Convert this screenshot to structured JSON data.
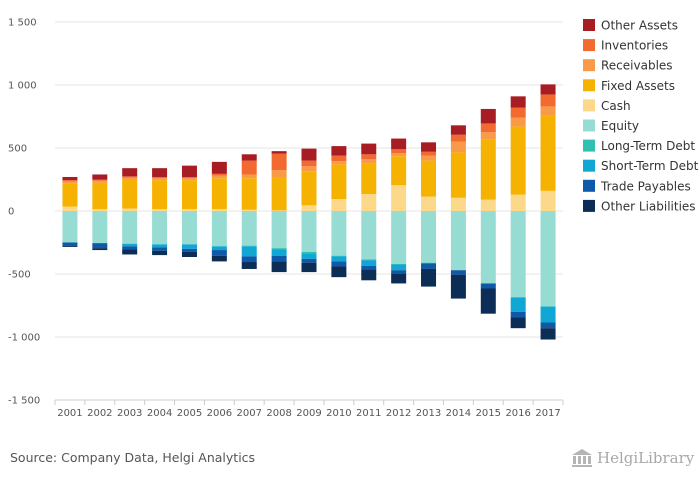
{
  "source": "Source: Company Data, Helgi Analytics",
  "brand": "HelgiLibrary",
  "colors": {
    "other_assets": "#a71d23",
    "inventories": "#f26a2f",
    "receivables": "#f89a48",
    "fixed_assets": "#f6b200",
    "cash": "#fcd88a",
    "equity": "#96dcd2",
    "long_term_debt": "#2ec0b0",
    "short_term_debt": "#10a7d4",
    "trade_payables": "#0f5aa8",
    "other_liabilities": "#0c2d55",
    "grid": "#e6e6e6",
    "axis": "#cccccc",
    "text": "#555555"
  },
  "chart_data": {
    "type": "bar",
    "stacked": true,
    "title": "",
    "xlabel": "",
    "ylabel": "",
    "ylim": [
      -1500,
      1500
    ],
    "yticks": [
      1500,
      1000,
      500,
      0,
      -500,
      -1000,
      -1500
    ],
    "ytick_labels": [
      "1 500",
      "1 000",
      "500",
      "0",
      "-500",
      "-1 000",
      "-1 500"
    ],
    "grid": true,
    "legend_position": "right",
    "categories": [
      "2001",
      "2002",
      "2003",
      "2004",
      "2005",
      "2006",
      "2007",
      "2008",
      "2009",
      "2010",
      "2011",
      "2012",
      "2013",
      "2014",
      "2015",
      "2016",
      "2017"
    ],
    "positive_series": [
      {
        "key": "cash",
        "name": "Cash",
        "values": [
          35,
          15,
          20,
          15,
          15,
          15,
          10,
          5,
          45,
          95,
          135,
          205,
          115,
          105,
          90,
          130,
          160
        ]
      },
      {
        "key": "fixed_assets",
        "name": "Fixed Assets",
        "values": [
          185,
          210,
          230,
          230,
          230,
          245,
          250,
          265,
          270,
          275,
          245,
          230,
          285,
          360,
          475,
          540,
          595
        ]
      },
      {
        "key": "receivables",
        "name": "Receivables",
        "values": [
          15,
          15,
          15,
          15,
          15,
          20,
          30,
          55,
          40,
          25,
          30,
          25,
          40,
          85,
          60,
          70,
          75
        ]
      },
      {
        "key": "inventories",
        "name": "Inventories",
        "values": [
          10,
          10,
          10,
          10,
          10,
          15,
          110,
          130,
          45,
          45,
          40,
          30,
          30,
          55,
          70,
          80,
          95
        ]
      },
      {
        "key": "other_assets",
        "name": "Other Assets",
        "values": [
          25,
          40,
          65,
          70,
          90,
          95,
          50,
          20,
          95,
          75,
          85,
          85,
          75,
          75,
          115,
          90,
          80
        ]
      }
    ],
    "negative_series": [
      {
        "key": "equity",
        "name": "Equity",
        "values": [
          -250,
          -255,
          -260,
          -265,
          -265,
          -280,
          -275,
          -295,
          -325,
          -355,
          -385,
          -420,
          -410,
          -470,
          -575,
          -685,
          -755
        ]
      },
      {
        "key": "long_term_debt",
        "name": "Long-Term Debt",
        "values": [
          0,
          0,
          0,
          0,
          0,
          0,
          -5,
          -10,
          -10,
          -5,
          -5,
          -5,
          -5,
          0,
          0,
          0,
          -5
        ]
      },
      {
        "key": "short_term_debt",
        "name": "Short-Term Debt",
        "values": [
          0,
          0,
          -20,
          -25,
          -35,
          -30,
          -80,
          -50,
          -45,
          -40,
          -45,
          -45,
          0,
          0,
          0,
          -115,
          -125
        ]
      },
      {
        "key": "trade_payables",
        "name": "Trade Payables",
        "values": [
          -25,
          -40,
          -25,
          -25,
          -25,
          -45,
          -45,
          -45,
          -30,
          -40,
          -30,
          -30,
          -45,
          -35,
          -40,
          -45,
          -45
        ]
      },
      {
        "key": "other_liabilities",
        "name": "Other Liabilities",
        "values": [
          -10,
          -15,
          -40,
          -35,
          -40,
          -45,
          -55,
          -85,
          -75,
          -85,
          -85,
          -75,
          -140,
          -190,
          -200,
          -85,
          -90
        ]
      }
    ],
    "legend": [
      {
        "key": "other_assets",
        "label": "Other Assets"
      },
      {
        "key": "inventories",
        "label": "Inventories"
      },
      {
        "key": "receivables",
        "label": "Receivables"
      },
      {
        "key": "fixed_assets",
        "label": "Fixed Assets"
      },
      {
        "key": "cash",
        "label": "Cash"
      },
      {
        "key": "equity",
        "label": "Equity"
      },
      {
        "key": "long_term_debt",
        "label": "Long-Term Debt"
      },
      {
        "key": "short_term_debt",
        "label": "Short-Term Debt"
      },
      {
        "key": "trade_payables",
        "label": "Trade Payables"
      },
      {
        "key": "other_liabilities",
        "label": "Other Liabilities"
      }
    ]
  }
}
